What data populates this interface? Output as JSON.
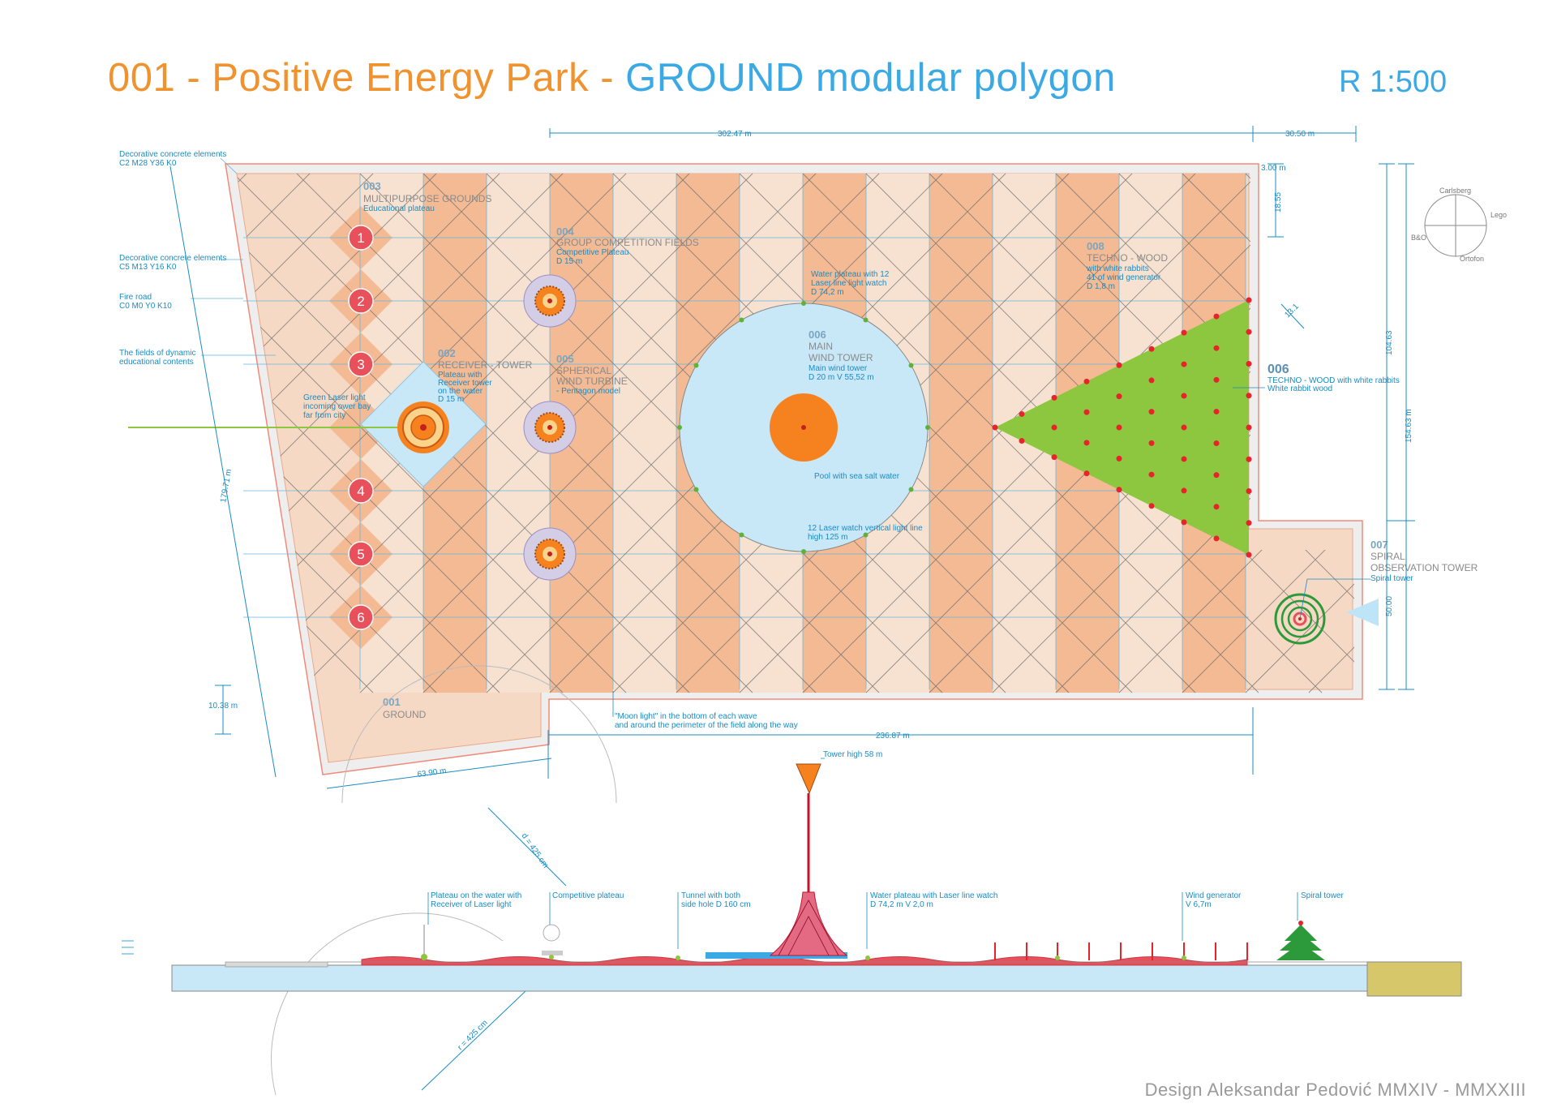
{
  "title": {
    "part1": "001 - Positive Energy Park - ",
    "part2": "GROUND modular polygon"
  },
  "scale": "R 1:500",
  "credit": "Design Aleksandar Pedović MMXIV - MMXXIII",
  "colors": {
    "orange": "#f0922e",
    "blue": "#3ba9e4",
    "ground": "#f6d9c4",
    "tile_dark": "#f3ba94",
    "tile_light": "#f7e2d2",
    "pool": "#c9e8f7",
    "green": "#8dc63f",
    "red": "#e8232b",
    "marker": "#e8505b"
  },
  "left_notes": [
    {
      "id": "n1",
      "line1": "Decorative concrete elements",
      "line2": "C2 M28 Y36 K0"
    },
    {
      "id": "n2",
      "line1": "Decorative concrete elements",
      "line2": "C5 M13 Y16 K0"
    },
    {
      "id": "n3",
      "line1": "Fire road",
      "line2": "C0 M0 Y0 K10"
    },
    {
      "id": "n4",
      "line1": "The fields of dynamic",
      "line2": "educational contents"
    }
  ],
  "numbered_markers": [
    "1",
    "2",
    "3",
    "4",
    "5",
    "6"
  ],
  "zones": {
    "z003": {
      "num": "003",
      "name": "MULTIPURPOSE GROUNDS",
      "sub": "Educational plateau"
    },
    "z004": {
      "num": "004",
      "name": "GROUP COMPETITION FIELDS",
      "sub1": "Competitive Plateau",
      "sub2": "D 15 m"
    },
    "z002": {
      "num": "002",
      "name": "RECEIVER - TOWER",
      "sub1": "Plateau with",
      "sub2": "Receiver tower",
      "sub3": "on the water",
      "sub4": "D 15 m"
    },
    "z005": {
      "num": "005",
      "name1": "SPHERICAL",
      "name2": "WIND TURBINE",
      "sub": "- Pentagon model"
    },
    "z006": {
      "num": "006",
      "name1": "MAIN",
      "name2": "WIND TOWER",
      "sub1": "Main wind tower",
      "sub2": "D 20 m  V 55,52 m"
    },
    "z008": {
      "num": "008",
      "name": "TECHNO - WOOD",
      "sub1": "with white rabbits",
      "sub2": "41 of wind generator",
      "sub3": "D 1,8 m"
    },
    "z006b": {
      "num": "006",
      "name": "TECHNO - WOOD with white rabbits",
      "sub": "White rabbit wood"
    },
    "z007": {
      "num": "007",
      "name1": "SPIRAL",
      "name2": "OBSERVATION TOWER",
      "sub": "Spiral tower"
    },
    "z001": {
      "num": "001",
      "name": "GROUND"
    }
  },
  "notes": {
    "laser": {
      "l1": "Green Laser light",
      "l2": "incoming ower bay",
      "l3": "far from city"
    },
    "water_plateau": {
      "l1": "Water plateau with 12",
      "l2": "Laser line light watch",
      "l3": "D 74,2 m"
    },
    "pool": "Pool with sea salt water",
    "laser_watch": {
      "l1": "12 Laser watch vertical light line",
      "l2": "high 125 m"
    },
    "moon": {
      "l1": "\"Moon light\" in the bottom of each wave",
      "l2": "and around the perimeter of the field along the way"
    }
  },
  "dimensions": {
    "top_width": "302.47 m",
    "top_right": "30.50 m",
    "d300": "3.00 m",
    "d1855": "18.55",
    "d10463": "104.63",
    "d15463": "154.63 m",
    "d5000": "50.00",
    "d131": "13.1",
    "d17971": "179.71 m",
    "d1038": "10.38 m",
    "d6390": "63.90 m",
    "d23687": "236.87 m"
  },
  "compass": {
    "n": "Carlsberg",
    "e": "Lego",
    "w": "B&O",
    "s": "Ortofon"
  },
  "section": {
    "tower_high": "Tower high 58 m",
    "d425": "d = 425 cm",
    "r425": "r = 425 cm",
    "plateau_water": {
      "l1": "Plateau on the water with",
      "l2": "Receiver of Laser light"
    },
    "competitive": "Competitive plateau",
    "tunnel": {
      "l1": "Tunnel with both",
      "l2": "side hole D 160 cm"
    },
    "water_plateau": {
      "l1": "Water plateau with Laser line watch",
      "l2": "D 74,2 m   V 2,0 m"
    },
    "wind_gen": {
      "l1": "Wind generator",
      "l2": "V 6,7m"
    },
    "spiral": "Spiral tower"
  }
}
